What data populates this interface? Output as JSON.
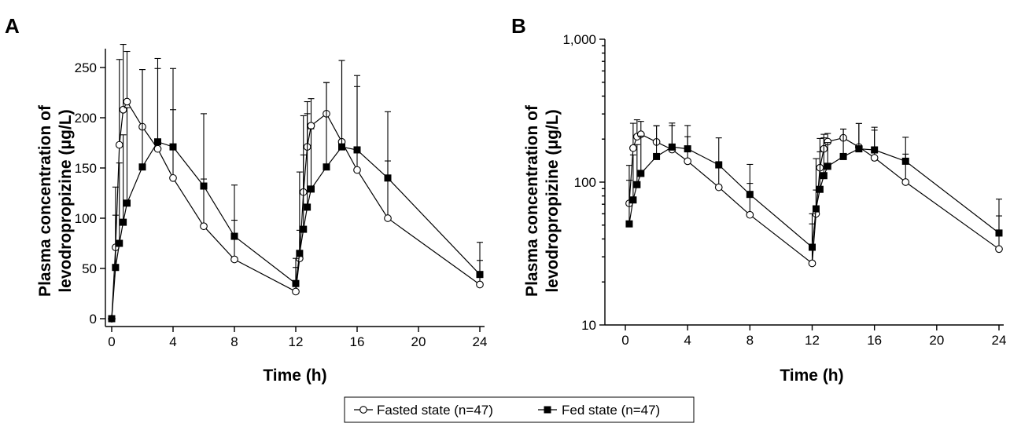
{
  "legend": {
    "items": [
      {
        "label": "Fasted state (n=47)",
        "marker": "open-circle"
      },
      {
        "label": "Fed state (n=47)",
        "marker": "filled-square"
      }
    ]
  },
  "chart_data": [
    {
      "panel": "A",
      "type": "line",
      "xlabel": "Time (h)",
      "ylabel_lines": [
        "Plasma concentration of",
        "levodropropizine (μg/L)"
      ],
      "xlim": [
        0,
        24
      ],
      "ylim": [
        0,
        270
      ],
      "yscale": "linear",
      "xticks": [
        0,
        4,
        8,
        12,
        16,
        20,
        24
      ],
      "xtick_labels": [
        "0",
        "4",
        "8",
        "12",
        "16",
        "20",
        "24"
      ],
      "yticks": [
        0,
        50,
        100,
        150,
        200,
        250
      ],
      "ytick_labels": [
        "0",
        "50",
        "100",
        "150",
        "200",
        "250"
      ],
      "series": [
        {
          "name": "Fasted state (n=47)",
          "marker": "open-circle",
          "x": [
            0,
            0.25,
            0.5,
            0.75,
            1,
            2,
            3,
            4,
            6,
            8,
            12,
            12.25,
            12.5,
            12.75,
            13,
            14,
            15,
            16,
            18,
            24
          ],
          "y": [
            0,
            71,
            173,
            208,
            216,
            191,
            169,
            140,
            92,
            59,
            27,
            60,
            126,
            171,
            192,
            204,
            176,
            148,
            100,
            34
          ],
          "err": [
            0,
            60,
            85,
            65,
            50,
            57,
            80,
            68,
            47,
            39,
            24,
            28,
            37,
            45,
            27,
            31,
            81,
            83,
            57,
            24
          ]
        },
        {
          "name": "Fed state (n=47)",
          "marker": "filled-square",
          "x": [
            0,
            0.25,
            0.5,
            0.75,
            1,
            2,
            3,
            4,
            6,
            8,
            12,
            12.25,
            12.5,
            12.75,
            13,
            14,
            15,
            16,
            18,
            24
          ],
          "y": [
            0,
            51,
            75,
            96,
            115,
            151,
            176,
            171,
            132,
            82,
            35,
            65,
            89,
            111,
            129,
            151,
            171,
            168,
            140,
            44
          ],
          "err": [
            0,
            52,
            80,
            87,
            95,
            97,
            83,
            78,
            72,
            51,
            25,
            81,
            113,
            93,
            60,
            84,
            86,
            74,
            66,
            32
          ]
        }
      ]
    },
    {
      "panel": "B",
      "type": "line",
      "xlabel": "Time (h)",
      "ylabel_lines": [
        "Plasma concentration of",
        "levodropropizine (μg/L)"
      ],
      "xlim": [
        0,
        24
      ],
      "ylim": [
        10,
        1000
      ],
      "yscale": "log",
      "xticks": [
        0,
        4,
        8,
        12,
        16,
        20,
        24
      ],
      "xtick_labels": [
        "0",
        "4",
        "8",
        "12",
        "16",
        "20",
        "24"
      ],
      "yticks": [
        10,
        100,
        1000
      ],
      "ytick_labels": [
        "10",
        "100",
        "1,000"
      ],
      "series": [
        {
          "name": "Fasted state (n=47)",
          "marker": "open-circle",
          "x": [
            0.25,
            0.5,
            0.75,
            1,
            2,
            3,
            4,
            6,
            8,
            12,
            12.25,
            12.5,
            12.75,
            13,
            14,
            15,
            16,
            18,
            24
          ],
          "y": [
            71,
            173,
            208,
            216,
            191,
            169,
            140,
            92,
            59,
            27,
            60,
            126,
            171,
            192,
            204,
            176,
            148,
            100,
            34
          ],
          "err": [
            60,
            85,
            65,
            50,
            57,
            80,
            68,
            47,
            39,
            24,
            28,
            37,
            45,
            27,
            31,
            81,
            83,
            57,
            24
          ]
        },
        {
          "name": "Fed state (n=47)",
          "marker": "filled-square",
          "x": [
            0.25,
            0.5,
            0.75,
            1,
            2,
            3,
            4,
            6,
            8,
            12,
            12.25,
            12.5,
            12.75,
            13,
            14,
            15,
            16,
            18,
            24
          ],
          "y": [
            51,
            75,
            96,
            115,
            151,
            176,
            171,
            132,
            82,
            35,
            65,
            89,
            111,
            129,
            151,
            171,
            168,
            140,
            44
          ],
          "err": [
            52,
            80,
            87,
            95,
            97,
            83,
            78,
            72,
            51,
            25,
            81,
            113,
            93,
            60,
            84,
            86,
            74,
            66,
            32
          ]
        }
      ]
    }
  ]
}
